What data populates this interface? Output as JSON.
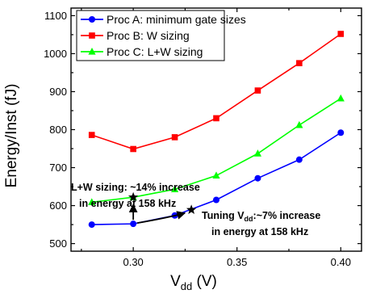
{
  "chart_data": {
    "type": "line",
    "xlabel": "V",
    "xlabel_sub": "dd",
    "xlabel_unit": " (V)",
    "ylabel": "Energy/Inst (fJ)",
    "xlim": [
      0.27,
      0.41
    ],
    "ylim": [
      480,
      1120
    ],
    "x_ticks": [
      0.3,
      0.35,
      0.4
    ],
    "x_tick_labels": [
      "0.30",
      "0.35",
      "0.40"
    ],
    "y_ticks": [
      500,
      600,
      700,
      800,
      900,
      1000,
      1100
    ],
    "y_tick_labels": [
      "500",
      "600",
      "700",
      "800",
      "900",
      "1000",
      "1100"
    ],
    "grid": false,
    "legend_position": "top-left",
    "x": [
      0.28,
      0.3,
      0.32,
      0.34,
      0.36,
      0.38,
      0.4
    ],
    "series": [
      {
        "name": "Proc A: minimum gate sizes",
        "color": "#0000ff",
        "marker": "circle",
        "values": [
          550,
          552,
          574,
          615,
          672,
          721,
          792
        ]
      },
      {
        "name": "Proc B: W sizing",
        "color": "#ff0000",
        "marker": "square",
        "values": [
          786,
          749,
          780,
          830,
          903,
          975,
          1052
        ]
      },
      {
        "name": "Proc C: L+W sizing",
        "color": "#00ff00",
        "marker": "triangle",
        "values": [
          609,
          622,
          643,
          679,
          737,
          812,
          882
        ]
      }
    ],
    "annotations": [
      {
        "lines": [
          "L+W sizing: ~14% increase",
          "in energy at 158 kHz"
        ]
      },
      {
        "line1_pre": "Tuning V",
        "line1_sub": "dd",
        "line1_post": ":~7% increase",
        "line2": "in energy at 158 kHz"
      }
    ],
    "star_points": [
      {
        "x": 0.3,
        "y": 622
      },
      {
        "x": 0.328,
        "y": 589
      }
    ]
  }
}
